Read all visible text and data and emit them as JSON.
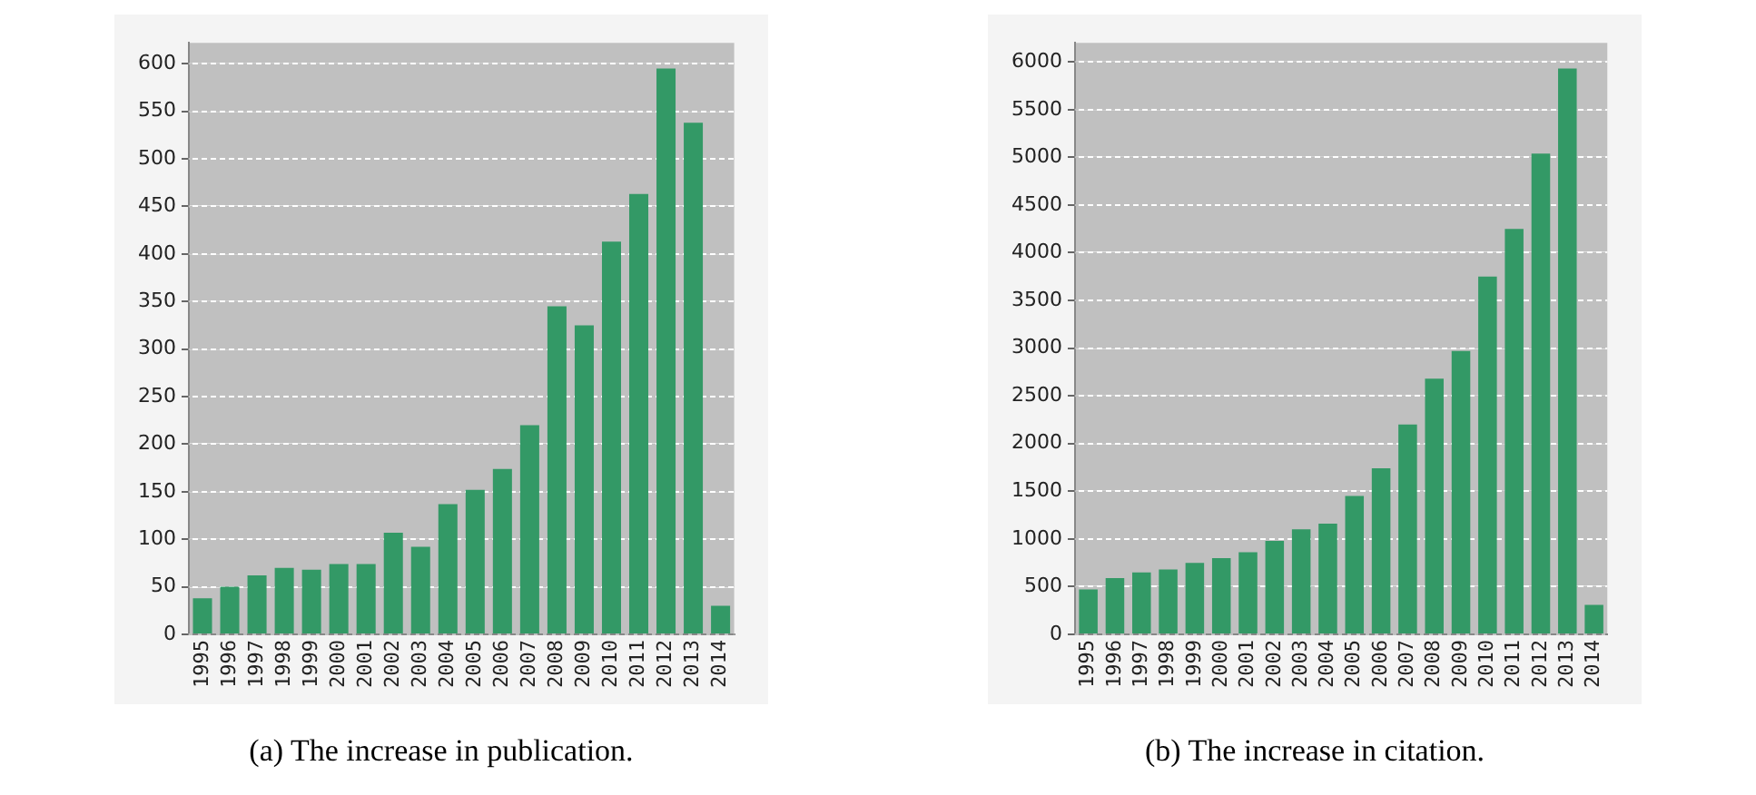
{
  "chart_data": [
    {
      "type": "bar",
      "categories": [
        "1995",
        "1996",
        "1997",
        "1998",
        "1999",
        "2000",
        "2001",
        "2002",
        "2003",
        "2004",
        "2005",
        "2006",
        "2007",
        "2008",
        "2009",
        "2010",
        "2011",
        "2012",
        "2013",
        "2014"
      ],
      "values": [
        38,
        50,
        62,
        70,
        68,
        74,
        74,
        107,
        92,
        137,
        152,
        174,
        220,
        345,
        325,
        413,
        463,
        595,
        538,
        30
      ],
      "color": "#339966",
      "ylim": [
        0,
        622
      ],
      "yticks": [
        0,
        50,
        100,
        150,
        200,
        250,
        300,
        350,
        400,
        450,
        500,
        550,
        600
      ],
      "grid": "y",
      "annotations": [
        "(a) The increase in publication."
      ]
    },
    {
      "type": "bar",
      "categories": [
        "1995",
        "1996",
        "1997",
        "1998",
        "1999",
        "2000",
        "2001",
        "2002",
        "2003",
        "2004",
        "2005",
        "2006",
        "2007",
        "2008",
        "2009",
        "2010",
        "2011",
        "2012",
        "2013",
        "2014"
      ],
      "values": [
        470,
        590,
        650,
        680,
        750,
        800,
        860,
        980,
        1100,
        1160,
        1450,
        1740,
        2200,
        2680,
        2970,
        3750,
        4250,
        5040,
        5930,
        310
      ],
      "color": "#339966",
      "ylim": [
        0,
        6200
      ],
      "yticks": [
        0,
        500,
        1000,
        1500,
        2000,
        2500,
        3000,
        3500,
        4000,
        4500,
        5000,
        5500,
        6000
      ],
      "grid": "y",
      "annotations": [
        "(b) The increase in citation."
      ]
    }
  ]
}
